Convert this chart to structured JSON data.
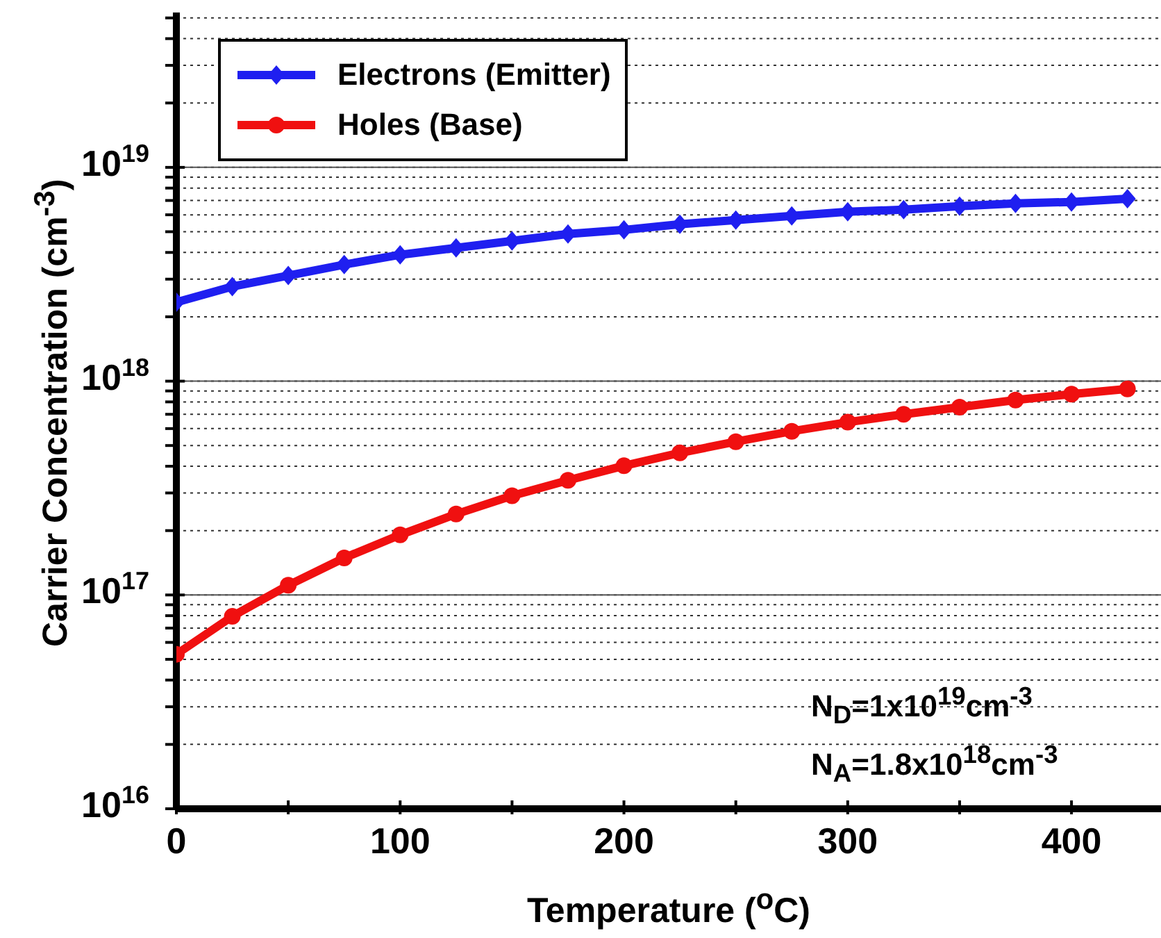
{
  "chart_data": {
    "type": "line",
    "xlabel": "Temperature ($^{o}$C)",
    "ylabel": "Carrier Concentration (cm$^{-3}$)",
    "x": [
      0,
      25,
      50,
      75,
      100,
      125,
      150,
      175,
      200,
      225,
      250,
      275,
      300,
      325,
      350,
      375,
      400,
      425
    ],
    "series": [
      {
        "name": "Electrons (Emitter)",
        "color": "#1f1ff0",
        "marker": "diamond",
        "values": [
          2.34e+18,
          2.77e+18,
          3.12e+18,
          3.51e+18,
          3.9e+18,
          4.2e+18,
          4.53e+18,
          4.88e+18,
          5.1e+18,
          5.42e+18,
          5.67e+18,
          5.93e+18,
          6.2e+18,
          6.34e+18,
          6.58e+18,
          6.78e+18,
          6.89e+18,
          7.14e+18
        ]
      },
      {
        "name": "Holes (Base)",
        "color": "#f01010",
        "marker": "circle",
        "values": [
          5.28e+16,
          7.94e+16,
          1.11e+17,
          1.49e+17,
          1.91e+17,
          2.39e+17,
          2.91e+17,
          3.44e+17,
          4.02e+17,
          4.62e+17,
          5.21e+17,
          5.83e+17,
          6.43e+17,
          7e+17,
          7.56e+17,
          8.16e+17,
          8.7e+17,
          9.2e+17
        ]
      }
    ],
    "xlim": [
      0,
      440
    ],
    "xticks": [
      0,
      {
        "value": 50,
        "label": null
      },
      100,
      {
        "value": 150,
        "label": null
      },
      200,
      {
        "value": 250,
        "label": null
      },
      300,
      {
        "value": 350,
        "label": null
      },
      400
    ],
    "ylim": [
      1e+16,
      5.3e+19
    ],
    "log": "y",
    "yticks": [
      {
        "value": 1e+16,
        "label": "10$^{16}$"
      },
      {
        "value": 2e+16,
        "label": null
      },
      {
        "value": 3e+16,
        "label": null
      },
      {
        "value": 4e+16,
        "label": null
      },
      {
        "value": 5e+16,
        "label": null
      },
      {
        "value": 6e+16,
        "label": null
      },
      {
        "value": 7e+16,
        "label": null
      },
      {
        "value": 8e+16,
        "label": null
      },
      {
        "value": 9e+16,
        "label": null
      },
      {
        "value": 1e+17,
        "label": "10$^{17}$"
      },
      {
        "value": 2e+17,
        "label": null
      },
      {
        "value": 3e+17,
        "label": null
      },
      {
        "value": 4e+17,
        "label": null
      },
      {
        "value": 5e+17,
        "label": null
      },
      {
        "value": 6e+17,
        "label": null
      },
      {
        "value": 7e+17,
        "label": null
      },
      {
        "value": 8e+17,
        "label": null
      },
      {
        "value": 9e+17,
        "label": null
      },
      {
        "value": 1e+18,
        "label": "10$^{18}$"
      },
      {
        "value": 2e+18,
        "label": null
      },
      {
        "value": 3e+18,
        "label": null
      },
      {
        "value": 4e+18,
        "label": null
      },
      {
        "value": 5e+18,
        "label": null
      },
      {
        "value": 6e+18,
        "label": null
      },
      {
        "value": 7e+18,
        "label": null
      },
      {
        "value": 8e+18,
        "label": null
      },
      {
        "value": 9e+18,
        "label": null
      },
      {
        "value": 1e+19,
        "label": "10$^{19}$"
      },
      {
        "value": 2e+19,
        "label": null
      },
      {
        "value": 3e+19,
        "label": null
      },
      {
        "value": 4e+19,
        "label": null
      },
      {
        "value": 5e+19,
        "label": null
      }
    ],
    "grid": "y",
    "legend": "top left",
    "line_style": "solid",
    "annotations": [
      "N$_{D}$=1x10$^{19}$cm$^{-3}$",
      "N$_{A}$=1.8x10$^{18}$cm$^{-3}$"
    ]
  }
}
